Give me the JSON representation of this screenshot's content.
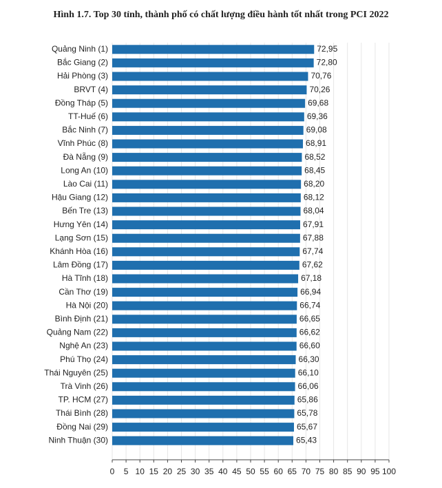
{
  "chart_data": {
    "type": "bar",
    "orientation": "horizontal",
    "title": "Hình 1.7. Top 30 tỉnh, thành phố có chất lượng điều hành tốt nhất trong PCI 2022",
    "categories": [
      "Quảng Ninh (1)",
      "Bắc Giang (2)",
      "Hải Phòng (3)",
      "BRVT (4)",
      "Đồng Tháp (5)",
      "TT-Huế (6)",
      "Bắc Ninh (7)",
      "Vĩnh Phúc (8)",
      "Đà Nẵng (9)",
      "Long An (10)",
      "Lào Cai (11)",
      "Hậu Giang (12)",
      "Bến Tre (13)",
      "Hưng Yên (14)",
      "Lạng Sơn (15)",
      "Khánh Hòa (16)",
      "Lâm Đồng (17)",
      "Hà Tĩnh (18)",
      "Cần Thơ (19)",
      "Hà Nội (20)",
      "Bình Định (21)",
      "Quảng Nam (22)",
      "Nghệ An (23)",
      "Phú Thọ (24)",
      "Thái Nguyên (25)",
      "Trà Vinh (26)",
      "TP. HCM (27)",
      "Thái Bình (28)",
      "Đồng Nai (29)",
      "Ninh Thuận (30)"
    ],
    "values": [
      72.95,
      72.8,
      70.76,
      70.26,
      69.68,
      69.36,
      69.08,
      68.91,
      68.52,
      68.45,
      68.2,
      68.12,
      68.04,
      67.91,
      67.88,
      67.74,
      67.62,
      67.18,
      66.94,
      66.74,
      66.65,
      66.62,
      66.6,
      66.3,
      66.1,
      66.06,
      65.86,
      65.78,
      65.67,
      65.43
    ],
    "value_labels": [
      "72,95",
      "72,80",
      "70,76",
      "70,26",
      "69,68",
      "69,36",
      "69,08",
      "68,91",
      "68,52",
      "68,45",
      "68,20",
      "68,12",
      "68,04",
      "67,91",
      "67,88",
      "67,74",
      "67,62",
      "67,18",
      "66,94",
      "66,74",
      "66,65",
      "66,62",
      "66,60",
      "66,30",
      "66,10",
      "66,06",
      "65,86",
      "65,78",
      "65,67",
      "65,43"
    ],
    "color": "#1f6fae",
    "xlim": [
      0,
      100
    ],
    "xticks": [
      0,
      5,
      10,
      15,
      20,
      25,
      30,
      35,
      40,
      45,
      50,
      55,
      60,
      65,
      70,
      75,
      80,
      85,
      90,
      95,
      100
    ],
    "grid": true
  }
}
